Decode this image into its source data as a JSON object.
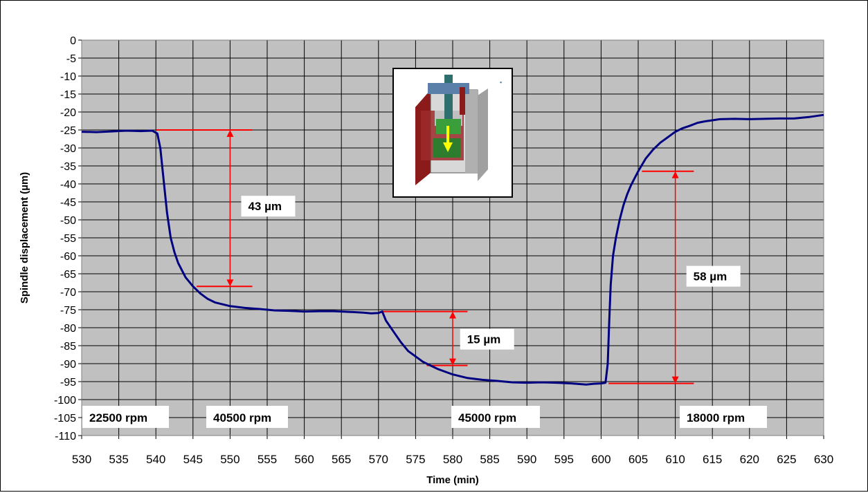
{
  "chart_data": {
    "type": "line",
    "title": "",
    "xlabel": "Time (min)",
    "ylabel": "Spindle displacement (µm)",
    "xlim": [
      530,
      630
    ],
    "ylim": [
      -110,
      0
    ],
    "x_ticks": [
      "530",
      "535",
      "540",
      "545",
      "550",
      "555",
      "560",
      "565",
      "570",
      "575",
      "580",
      "585",
      "590",
      "595",
      "600",
      "605",
      "610",
      "615",
      "620",
      "625",
      "630"
    ],
    "y_ticks": [
      "0",
      "-5",
      "-10",
      "-15",
      "-20",
      "-25",
      "-30",
      "-35",
      "-40",
      "-45",
      "-50",
      "-55",
      "-60",
      "-65",
      "-70",
      "-75",
      "-80",
      "-85",
      "-90",
      "-95",
      "-100",
      "-105",
      "-110"
    ],
    "grid": true,
    "colors": {
      "plot_bg": "#c0c0c0",
      "line": "#000080",
      "annotation": "#ff0000"
    },
    "series": [
      {
        "x": [
          530,
          532,
          534,
          536,
          538,
          539.5,
          540.2,
          540.6,
          541,
          541.5,
          542,
          542.5,
          543,
          544,
          545,
          546,
          547,
          548,
          550,
          552,
          554,
          556,
          558,
          560,
          562,
          564,
          566,
          568,
          569,
          570,
          570.5,
          571,
          572,
          573,
          574,
          575,
          576,
          577,
          578,
          580,
          582,
          584,
          586,
          588,
          590,
          592,
          594,
          596,
          598,
          599,
          600,
          600.6,
          600.9,
          601.1,
          601.3,
          601.6,
          602,
          602.5,
          603,
          603.5,
          604,
          604.5,
          605,
          606,
          607,
          608,
          609,
          610,
          611,
          612,
          613,
          614,
          615,
          616,
          618,
          620,
          622,
          624,
          626,
          628,
          630
        ],
        "y": [
          -25.5,
          -25.6,
          -25.4,
          -25.2,
          -25.3,
          -25.2,
          -26,
          -30,
          -38,
          -48,
          -55,
          -59,
          -62,
          -66,
          -68.5,
          -70.5,
          -72,
          -73,
          -74,
          -74.5,
          -74.8,
          -75.2,
          -75.3,
          -75.5,
          -75.4,
          -75.4,
          -75.6,
          -75.8,
          -76,
          -75.9,
          -75.5,
          -78,
          -81,
          -84,
          -86.5,
          -88,
          -89.5,
          -90.5,
          -91.5,
          -93,
          -94,
          -94.5,
          -94.8,
          -95.2,
          -95.3,
          -95.2,
          -95.3,
          -95.5,
          -95.8,
          -95.6,
          -95.5,
          -95.3,
          -90,
          -78,
          -68,
          -60,
          -55,
          -50,
          -46,
          -43,
          -40.5,
          -38.5,
          -36.5,
          -33,
          -30.5,
          -28.5,
          -27,
          -25.5,
          -24.5,
          -23.8,
          -23,
          -22.6,
          -22.3,
          -22,
          -21.9,
          -22,
          -21.9,
          -21.8,
          -21.8,
          -21.4,
          -20.8
        ]
      }
    ],
    "annotations": [
      {
        "label": "43 µm",
        "x": 550,
        "y_from": -25,
        "y_to": -68.5
      },
      {
        "label": "15 µm",
        "x": 580,
        "y_from": -75.5,
        "y_to": -90.5
      },
      {
        "label": "58 µm",
        "x": 610,
        "y_from": -36.5,
        "y_to": -95.5
      }
    ],
    "speed_labels": [
      "22500 rpm",
      "40500 rpm",
      "45000 rpm",
      "18000 rpm"
    ],
    "inset": {
      "description_icon": "spindle-cutaway-icon"
    }
  }
}
